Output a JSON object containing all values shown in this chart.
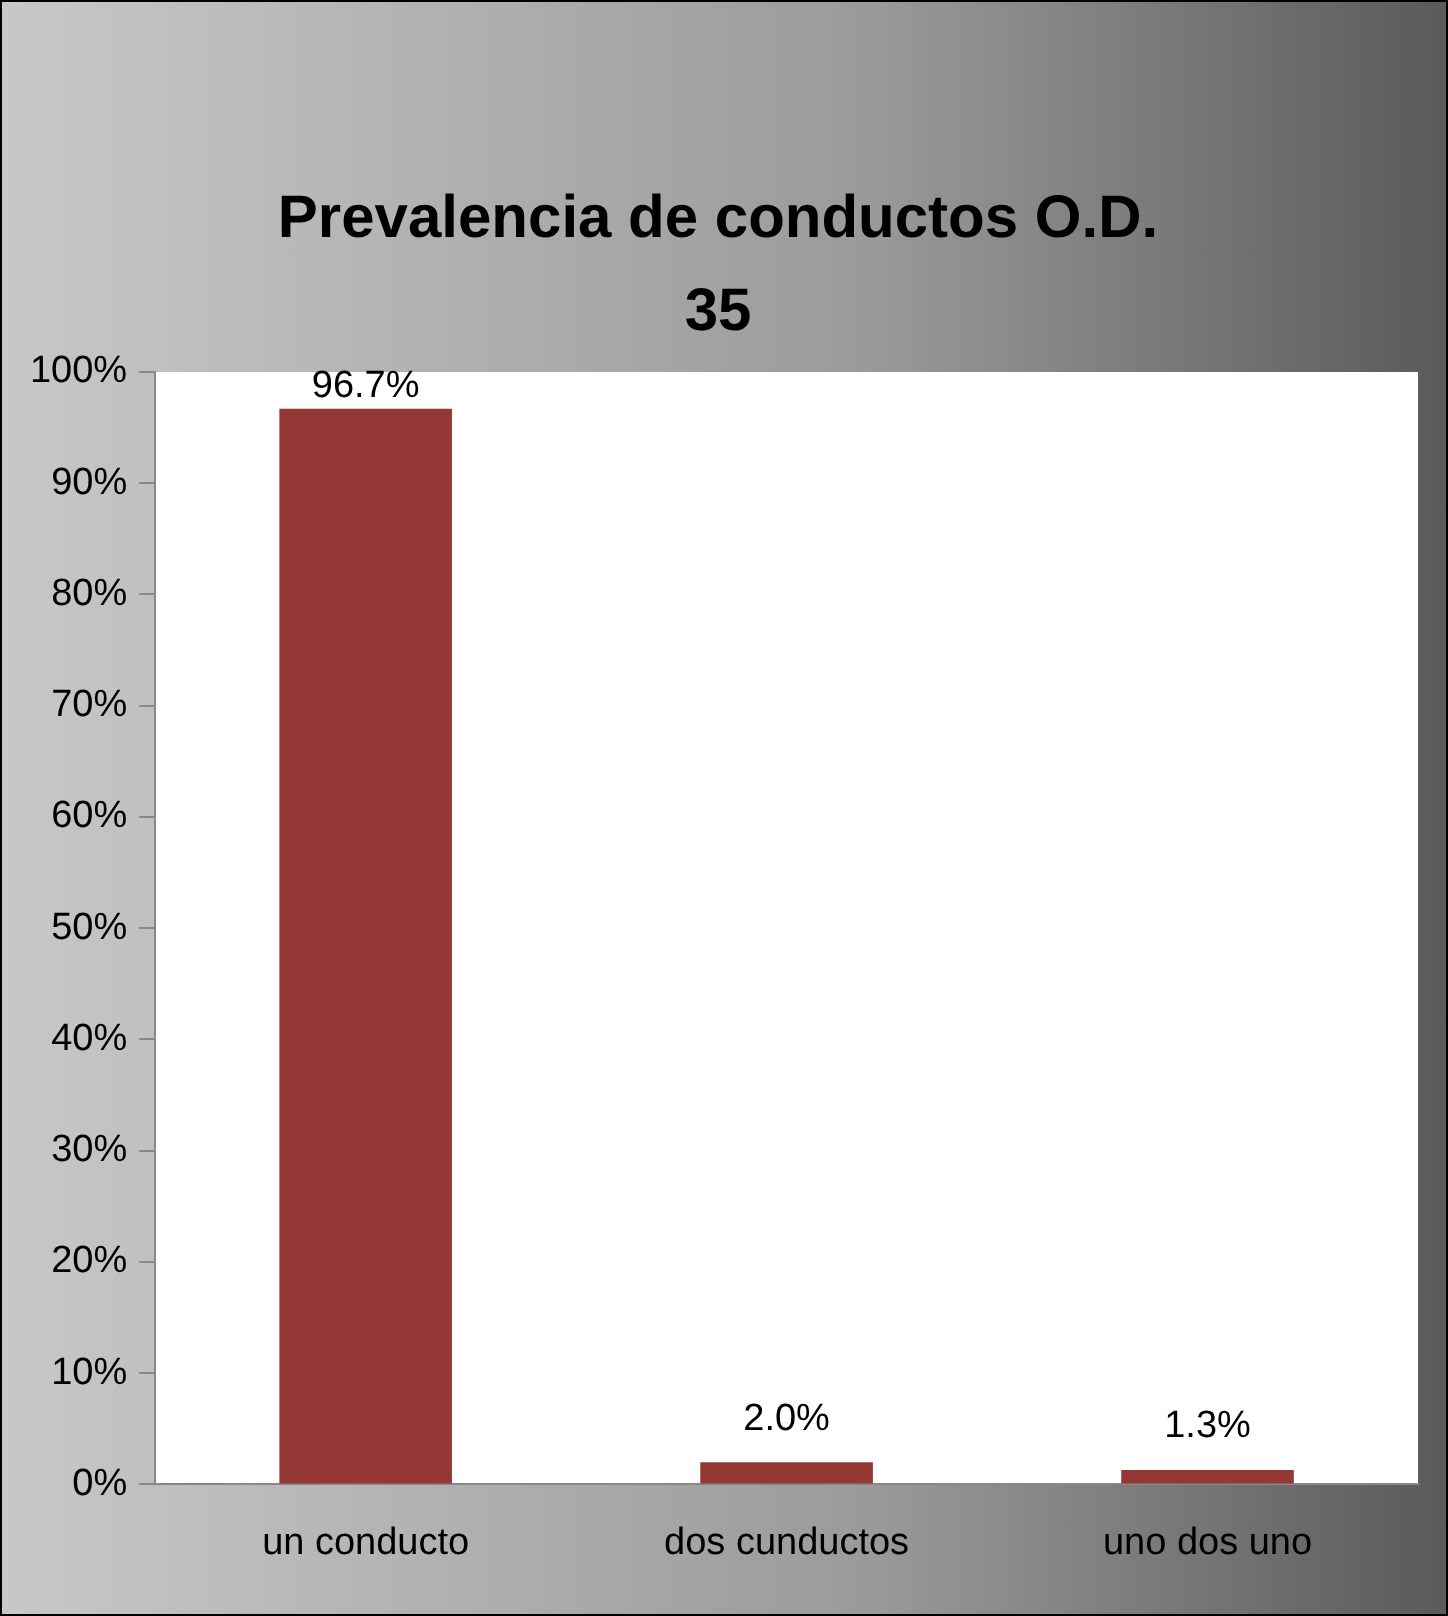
{
  "chart_data": {
    "type": "bar",
    "title": "Prevalencia de conductos O.D. 35",
    "categories": [
      "un conducto",
      "dos cunductos",
      "uno dos uno"
    ],
    "values": [
      96.7,
      2.0,
      1.3
    ],
    "color": "#953735",
    "value_labels": [
      "96.7%",
      "2.0%",
      "1.3%"
    ],
    "ylim": [
      0,
      100
    ],
    "yticks": [
      {
        "value": 0,
        "label": "0%"
      },
      {
        "value": 10,
        "label": "10%"
      },
      {
        "value": 20,
        "label": "20%"
      },
      {
        "value": 30,
        "label": "30%"
      },
      {
        "value": 40,
        "label": "40%"
      },
      {
        "value": 50,
        "label": "50%"
      },
      {
        "value": 60,
        "label": "60%"
      },
      {
        "value": 70,
        "label": "70%"
      },
      {
        "value": 80,
        "label": "80%"
      },
      {
        "value": 90,
        "label": "90%"
      },
      {
        "value": 100,
        "label": "100%"
      }
    ],
    "grid": false,
    "legend": false
  }
}
